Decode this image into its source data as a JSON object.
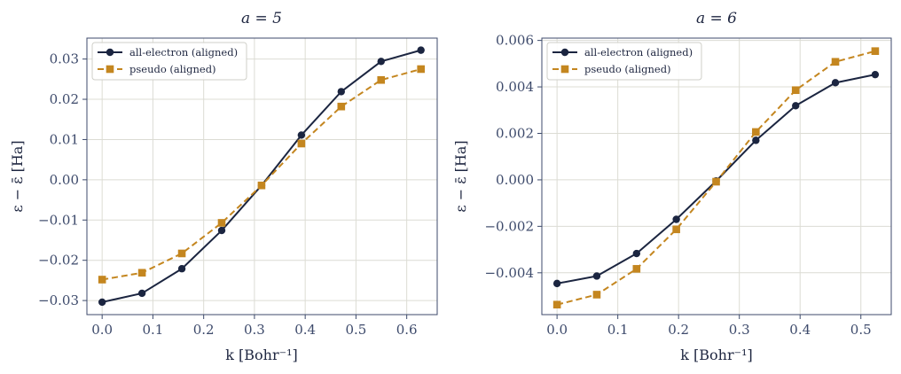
{
  "colors": {
    "all_electron": "#1b2540",
    "pseudo": "#c4861f",
    "grid": "#dcdcd4",
    "frame": "#3d4a6b"
  },
  "chart_data": [
    {
      "type": "line",
      "title": "a = 5",
      "xlabel": "k [Bohr⁻¹]",
      "ylabel": "ε − ε̄ [Ha]",
      "xlim": [
        -0.03,
        0.66
      ],
      "ylim": [
        -0.0335,
        0.0352
      ],
      "xticks": [
        0.0,
        0.1,
        0.2,
        0.3,
        0.4,
        0.5,
        0.6
      ],
      "xtick_labels": [
        "0.0",
        "0.1",
        "0.2",
        "0.3",
        "0.4",
        "0.5",
        "0.6"
      ],
      "yticks": [
        -0.03,
        -0.02,
        -0.01,
        0.0,
        0.01,
        0.02,
        0.03
      ],
      "ytick_labels": [
        "−0.03",
        "−0.02",
        "−0.01",
        "0.00",
        "0.01",
        "0.02",
        "0.03"
      ],
      "grid": true,
      "legend_position": "top-left",
      "x": [
        0.0,
        0.0785,
        0.157,
        0.2355,
        0.314,
        0.3925,
        0.471,
        0.5495,
        0.628
      ],
      "series": [
        {
          "name": "all-electron (aligned)",
          "marker": "circle",
          "style": "solid",
          "values": [
            -0.0304,
            -0.0282,
            -0.0221,
            -0.0126,
            -0.0014,
            0.0111,
            0.0219,
            0.0294,
            0.0322
          ]
        },
        {
          "name": "pseudo (aligned)",
          "marker": "square",
          "style": "dashed",
          "values": [
            -0.0248,
            -0.0231,
            -0.0183,
            -0.0107,
            -0.0014,
            0.009,
            0.0182,
            0.0248,
            0.0275
          ]
        }
      ]
    },
    {
      "type": "line",
      "title": "a = 6",
      "xlabel": "k [Bohr⁻¹]",
      "ylabel": "ε − ε̄ [Ha]",
      "xlim": [
        -0.025,
        0.55
      ],
      "ylim": [
        -0.0058,
        0.0061
      ],
      "xticks": [
        0.0,
        0.1,
        0.2,
        0.3,
        0.4,
        0.5
      ],
      "xtick_labels": [
        "0.0",
        "0.1",
        "0.2",
        "0.3",
        "0.4",
        "0.5"
      ],
      "yticks": [
        -0.004,
        -0.002,
        0.0,
        0.002,
        0.004,
        0.006
      ],
      "ytick_labels": [
        "−0.004",
        "−0.002",
        "0.000",
        "0.002",
        "0.004",
        "0.006"
      ],
      "grid": true,
      "legend_position": "top-left",
      "x": [
        0.0,
        0.0654,
        0.1309,
        0.1963,
        0.2618,
        0.3272,
        0.3927,
        0.4581,
        0.5236
      ],
      "series": [
        {
          "name": "all-electron (aligned)",
          "marker": "circle",
          "style": "solid",
          "values": [
            -0.00446,
            -0.00414,
            -0.00317,
            -0.0017,
            -5e-05,
            0.0017,
            0.00319,
            0.00418,
            0.00453
          ]
        },
        {
          "name": "pseudo (aligned)",
          "marker": "square",
          "style": "dashed",
          "values": [
            -0.00537,
            -0.00494,
            -0.00383,
            -0.00213,
            -8e-05,
            0.00206,
            0.00386,
            0.00508,
            0.00554
          ]
        }
      ]
    }
  ]
}
